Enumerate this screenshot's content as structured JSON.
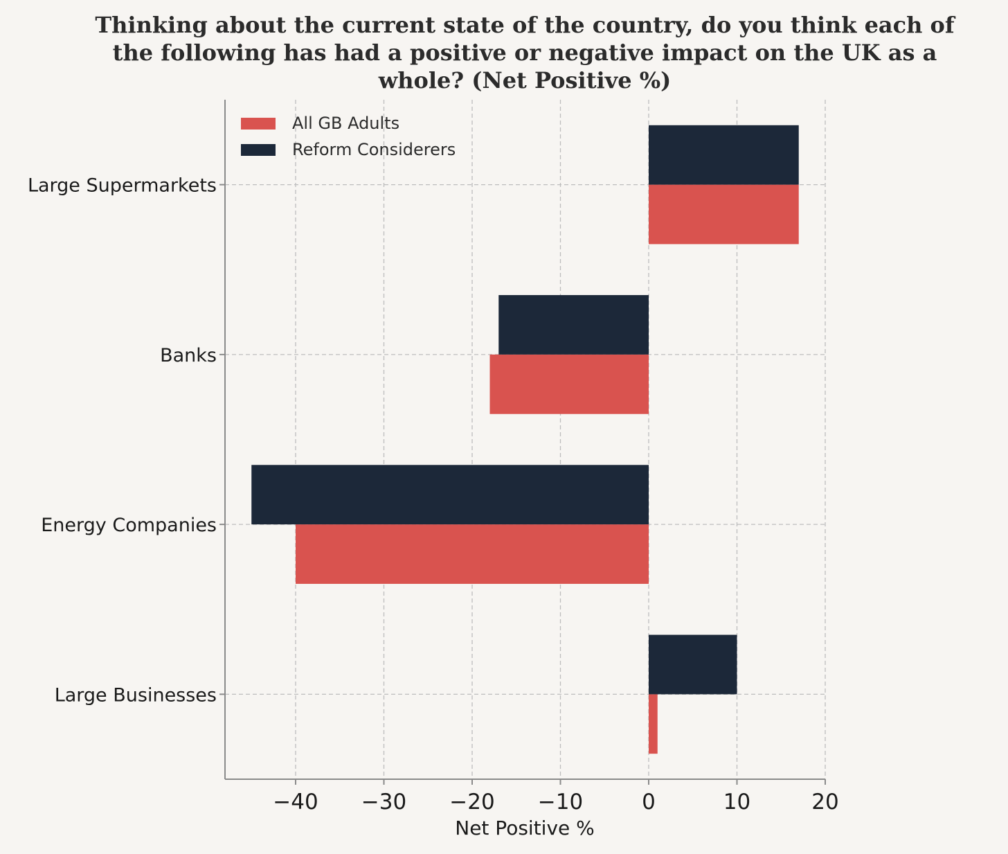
{
  "chart_data": {
    "type": "bar",
    "orientation": "horizontal",
    "title_lines": [
      "Thinking about the current state of the country, do you think each of",
      "the following has had a positive or negative impact on the UK as a",
      "whole? (Net Positive %)"
    ],
    "xlabel": "Net Positive %",
    "ylabel": "",
    "xlim": [
      -48,
      20
    ],
    "xticks": [
      -40,
      -30,
      -20,
      -10,
      0,
      10,
      20
    ],
    "xtick_labels": [
      "−40",
      "−30",
      "−20",
      "−10",
      "0",
      "10",
      "20"
    ],
    "categories": [
      "Large Supermarkets",
      "Banks",
      "Energy Companies",
      "Large Businesses"
    ],
    "series": [
      {
        "name": "All GB Adults",
        "color": "#d9534f",
        "values": [
          17,
          -18,
          -40,
          1
        ]
      },
      {
        "name": "Reform Considerers",
        "color": "#1c2839",
        "values": [
          17,
          -17,
          -45,
          10
        ]
      }
    ],
    "grid": true,
    "legend_position": "top-left"
  }
}
